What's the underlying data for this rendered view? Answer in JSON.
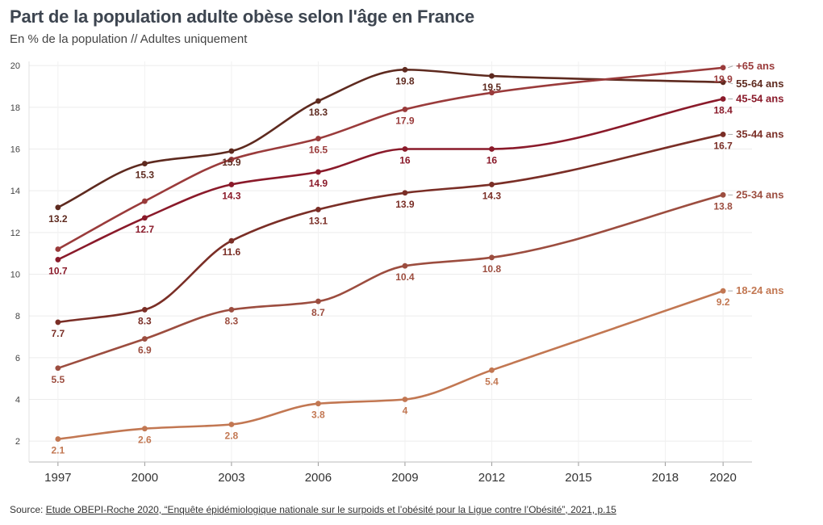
{
  "title": "Part de la population adulte obèse selon l'âge en France",
  "subtitle": "En % de la population // Adultes uniquement",
  "source": {
    "prefix": "Source: ",
    "link_text": "Etude OBEPI-Roche 2020, “Enquête épidémiologique nationale sur le surpoids et l’obésité pour la Ligue contre l’Obésité”, 2021, p.15"
  },
  "colors": {
    "+65 ans": "#9a3b3b",
    "55-64 ans": "#5e2a1f",
    "45-54 ans": "#8a1a2a",
    "35-44 ans": "#7a2e26",
    "25-34 ans": "#9c4d3f",
    "18-24 ans": "#c27752"
  },
  "chart_data": {
    "type": "line",
    "x_ticks": [
      "1997",
      "2000",
      "2003",
      "2006",
      "2009",
      "2012",
      "2015",
      "2018",
      "2020"
    ],
    "y_ticks": [
      "2",
      "4",
      "6",
      "8",
      "10",
      "12",
      "14",
      "16",
      "18",
      "20"
    ],
    "ylim": [
      1,
      20.2
    ],
    "grid": true,
    "legend": "end-of-line labels",
    "series": [
      {
        "name": "55-64 ans",
        "x": [
          1997,
          2000,
          2003,
          2006,
          2009,
          2012,
          2020
        ],
        "values": [
          13.2,
          15.3,
          15.9,
          18.3,
          19.8,
          19.5,
          19.2
        ],
        "labels": [
          "13.2",
          "15.3",
          "15.9",
          "18.3",
          "19.8",
          "19.5",
          ""
        ]
      },
      {
        "name": "+65 ans",
        "x": [
          1997,
          2000,
          2003,
          2006,
          2009,
          2012,
          2020
        ],
        "values": [
          11.2,
          13.5,
          15.5,
          16.5,
          17.9,
          18.7,
          19.9
        ],
        "labels": [
          "",
          "",
          "",
          "16.5",
          "17.9",
          "",
          "19.9"
        ]
      },
      {
        "name": "45-54 ans",
        "x": [
          1997,
          2000,
          2003,
          2006,
          2009,
          2012,
          2020
        ],
        "values": [
          10.7,
          12.7,
          14.3,
          14.9,
          16,
          16,
          18.4
        ],
        "labels": [
          "10.7",
          "12.7",
          "14.3",
          "14.9",
          "16",
          "16",
          "18.4"
        ]
      },
      {
        "name": "35-44 ans",
        "x": [
          1997,
          2000,
          2003,
          2006,
          2009,
          2012,
          2020
        ],
        "values": [
          7.7,
          8.3,
          11.6,
          13.1,
          13.9,
          14.3,
          16.7
        ],
        "labels": [
          "7.7",
          "8.3",
          "11.6",
          "13.1",
          "13.9",
          "14.3",
          "16.7"
        ]
      },
      {
        "name": "25-34 ans",
        "x": [
          1997,
          2000,
          2003,
          2006,
          2009,
          2012,
          2020
        ],
        "values": [
          5.5,
          6.9,
          8.3,
          8.7,
          10.4,
          10.8,
          13.8
        ],
        "labels": [
          "5.5",
          "6.9",
          "8.3",
          "8.7",
          "10.4",
          "10.8",
          "13.8"
        ]
      },
      {
        "name": "18-24 ans",
        "x": [
          1997,
          2000,
          2003,
          2006,
          2009,
          2012,
          2020
        ],
        "values": [
          2.1,
          2.6,
          2.8,
          3.8,
          4,
          5.4,
          9.2
        ],
        "labels": [
          "2.1",
          "2.6",
          "2.8",
          "3.8",
          "4",
          "5.4",
          "9.2"
        ]
      }
    ]
  }
}
